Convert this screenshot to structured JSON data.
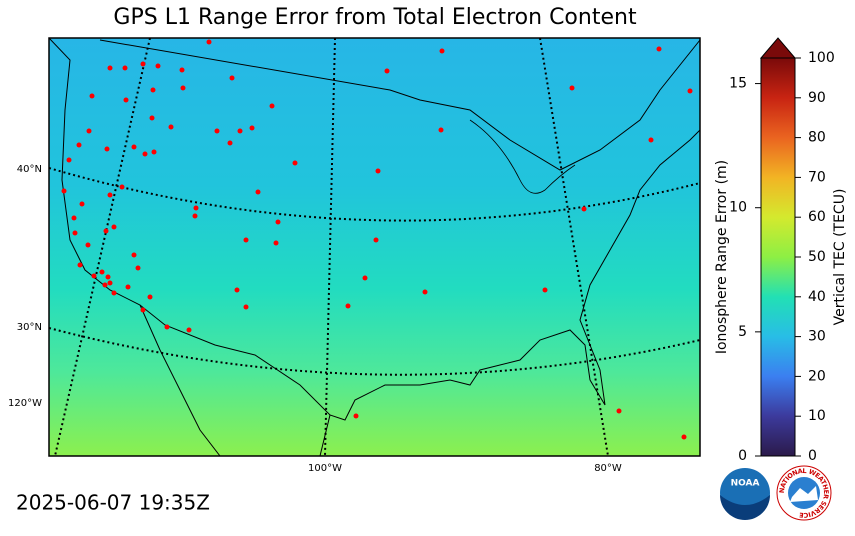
{
  "title": "GPS L1 Range Error from Total Electron Content",
  "timestamp": "2025-06-07 19:35Z",
  "map": {
    "lat_labels": [
      "40°N",
      "30°N"
    ],
    "lon_labels": [
      "120°W",
      "100°W",
      "80°W"
    ]
  },
  "colorbar": {
    "tec_label": "Vertical TEC (TECU)",
    "tec_lim": [
      0,
      100
    ],
    "tec_ticks": [
      0,
      10,
      20,
      30,
      40,
      50,
      60,
      70,
      80,
      90,
      100
    ],
    "range_label": "Ionosphere Range Error (m)",
    "range_lim": [
      0,
      16.03
    ],
    "range_ticks": [
      0,
      5,
      10,
      15
    ]
  },
  "logos": {
    "noaa": "NOAA",
    "nws": "NATIONAL WEATHER SERVICE"
  }
}
